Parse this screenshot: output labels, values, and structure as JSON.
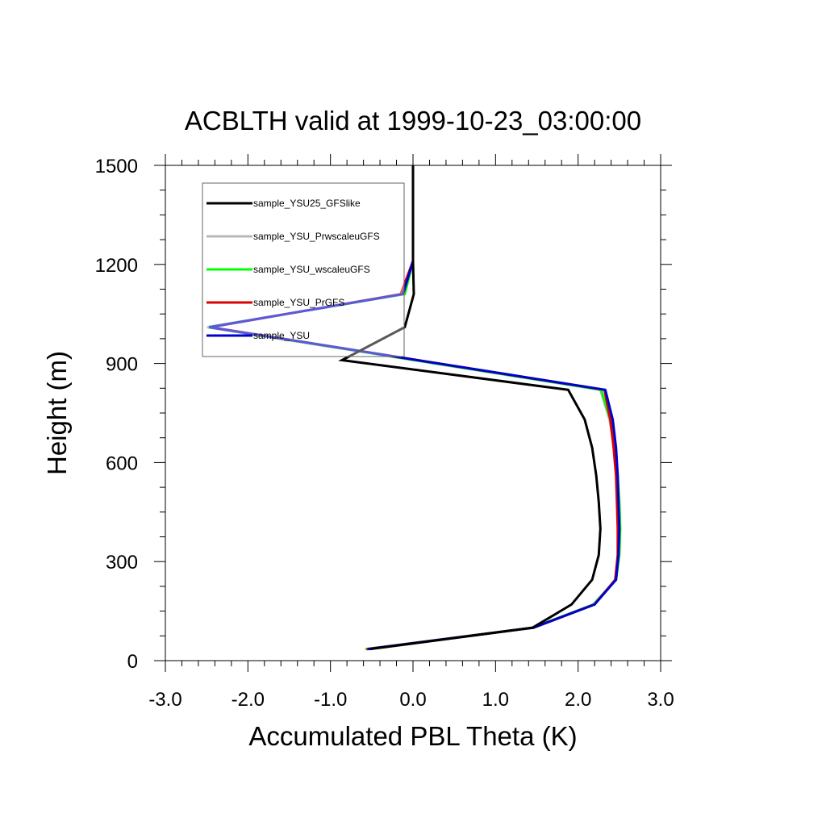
{
  "chart_data": {
    "type": "line",
    "title": "ACBLTH valid at 1999-10-23_03:00:00",
    "xlabel": "Accumulated PBL Theta (K)",
    "ylabel": "Height (m)",
    "xlim": [
      -3.0,
      3.0
    ],
    "ylim": [
      0,
      1500
    ],
    "x_ticks": [
      -3.0,
      -2.0,
      -1.0,
      0.0,
      1.0,
      2.0,
      3.0
    ],
    "x_tick_labels": [
      "-3.0",
      "-2.0",
      "-1.0",
      "0.0",
      "1.0",
      "2.0",
      "3.0"
    ],
    "y_ticks": [
      0,
      300,
      600,
      900,
      1200,
      1500
    ],
    "y_tick_labels": [
      "0",
      "300",
      "600",
      "900",
      "1200",
      "1500"
    ],
    "legend_position": "top-left",
    "series": [
      {
        "name": "sample_YSU25_GFSlike",
        "color": "#000000",
        "x": [
          -0.52,
          1.45,
          1.92,
          2.17,
          2.25,
          2.27,
          2.25,
          2.22,
          2.17,
          2.08,
          1.88,
          -0.86,
          -0.1,
          0.01,
          0.0,
          0.0,
          0.0,
          0.0
        ],
        "y": [
          35,
          100,
          170,
          245,
          320,
          400,
          480,
          560,
          645,
          730,
          820,
          910,
          1010,
          1110,
          1210,
          1300,
          1400,
          1500
        ]
      },
      {
        "name": "sample_YSU_PrwscaleuGFS",
        "color": "#b8b8b8",
        "x": [
          -0.58,
          1.45,
          2.18,
          2.46,
          2.49,
          2.5,
          2.49,
          2.47,
          2.44,
          2.38,
          2.27,
          -2.5,
          -0.1,
          0.0
        ],
        "y": [
          35,
          100,
          170,
          245,
          320,
          400,
          480,
          560,
          645,
          730,
          820,
          1010,
          1110,
          1210
        ]
      },
      {
        "name": "sample_YSU_wscaleuGFS",
        "color": "#00ff00",
        "x": [
          -0.57,
          1.45,
          2.19,
          2.46,
          2.5,
          2.51,
          2.5,
          2.48,
          2.45,
          2.39,
          2.28,
          -2.48,
          -0.1,
          0.0
        ],
        "y": [
          35,
          100,
          170,
          245,
          320,
          400,
          480,
          560,
          645,
          730,
          820,
          1010,
          1110,
          1210
        ]
      },
      {
        "name": "sample_YSU_PrGFS",
        "color": "#dd0000",
        "x": [
          -0.56,
          1.46,
          2.2,
          2.45,
          2.48,
          2.48,
          2.47,
          2.46,
          2.43,
          2.39,
          2.32,
          -2.45,
          -0.15,
          0.0
        ],
        "y": [
          35,
          100,
          170,
          245,
          320,
          400,
          480,
          560,
          645,
          730,
          820,
          1010,
          1110,
          1210
        ]
      },
      {
        "name": "sample_YSU",
        "color": "#0000cc",
        "x": [
          -0.55,
          1.46,
          2.2,
          2.46,
          2.49,
          2.5,
          2.49,
          2.48,
          2.46,
          2.42,
          2.33,
          -2.47,
          -0.12,
          0.0
        ],
        "y": [
          35,
          100,
          170,
          245,
          320,
          400,
          480,
          560,
          645,
          730,
          820,
          1010,
          1110,
          1210
        ]
      }
    ]
  }
}
